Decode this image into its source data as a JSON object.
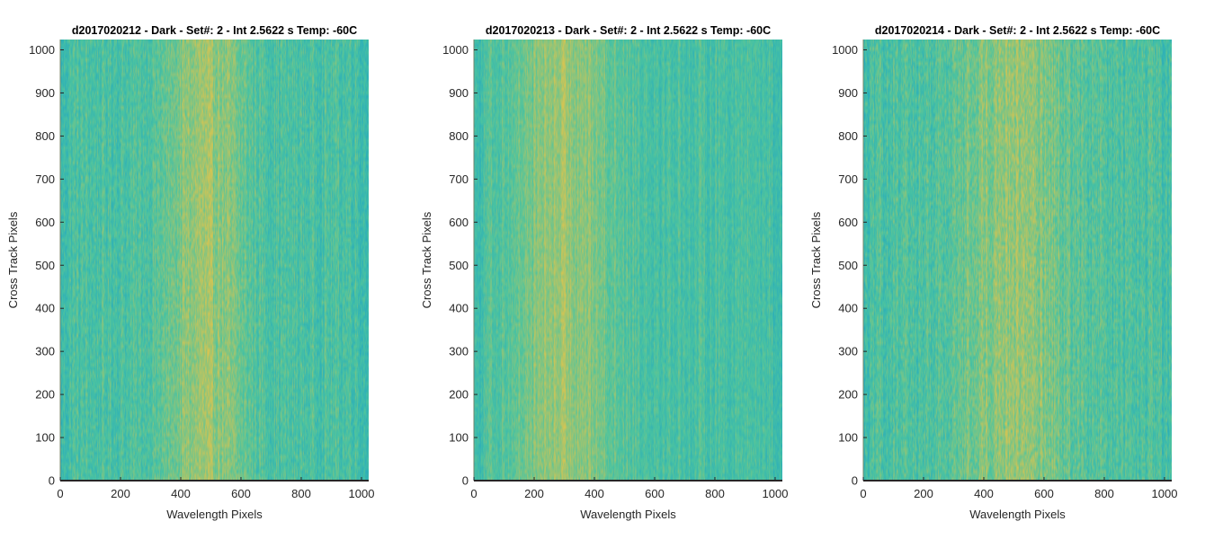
{
  "chart_data": [
    {
      "type": "heatmap",
      "title": "d2017020212 - Dark - Set#: 2 - Int 2.5622 s Temp: -60C",
      "xlabel": "Wavelength Pixels",
      "ylabel": "Cross Track Pixels",
      "xlim": [
        0,
        1024
      ],
      "ylim": [
        0,
        1024
      ],
      "xticks": [
        0,
        200,
        400,
        600,
        800,
        1000
      ],
      "yticks": [
        0,
        100,
        200,
        300,
        400,
        500,
        600,
        700,
        800,
        900,
        1000
      ],
      "colormap": "parula",
      "colors": {
        "low": "#1aa3c8",
        "mid": "#4cc4a0",
        "high": "#d6c452"
      },
      "bright_band_center_x": 480,
      "bright_band_width_x": 130,
      "noise_level": 0.55
    },
    {
      "type": "heatmap",
      "title": "d2017020213 - Dark - Set#: 2 - Int 2.5622 s Temp: -60C",
      "xlabel": "Wavelength Pixels",
      "ylabel": "Cross Track Pixels",
      "xlim": [
        0,
        1024
      ],
      "ylim": [
        0,
        1024
      ],
      "xticks": [
        0,
        200,
        400,
        600,
        800,
        1000
      ],
      "yticks": [
        0,
        100,
        200,
        300,
        400,
        500,
        600,
        700,
        800,
        900,
        1000
      ],
      "colormap": "parula",
      "colors": {
        "low": "#1aa3c8",
        "mid": "#4cc4a0",
        "high": "#d6c452"
      },
      "bright_band_center_x": 300,
      "bright_band_width_x": 170,
      "noise_level": 0.45
    },
    {
      "type": "heatmap",
      "title": "d2017020214 - Dark - Set#: 2 - Int 2.5622 s Temp: -60C",
      "xlabel": "Wavelength Pixels",
      "ylabel": "Cross Track Pixels",
      "xlim": [
        0,
        1024
      ],
      "ylim": [
        0,
        1024
      ],
      "xticks": [
        0,
        200,
        400,
        600,
        800,
        1000
      ],
      "yticks": [
        0,
        100,
        200,
        300,
        400,
        500,
        600,
        700,
        800,
        900,
        1000
      ],
      "colormap": "parula",
      "colors": {
        "low": "#1aa3c8",
        "mid": "#4cc4a0",
        "high": "#d6c452"
      },
      "bright_band_center_x": 500,
      "bright_band_width_x": 180,
      "noise_level": 0.6
    }
  ]
}
